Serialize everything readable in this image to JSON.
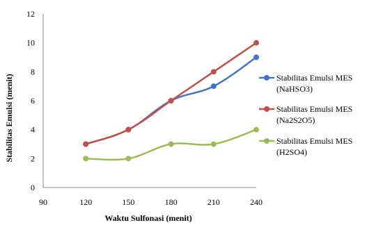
{
  "chart_data": {
    "type": "line",
    "title": "",
    "xlabel": "Waktu Sulfonasi (menit)",
    "ylabel": "Stabilitas Emulsi (menit)",
    "xlim": [
      90,
      240
    ],
    "ylim": [
      0,
      12
    ],
    "xticks": [
      "90",
      "120",
      "150",
      "180",
      "210",
      "240"
    ],
    "yticks": [
      "0",
      "2",
      "4",
      "6",
      "8",
      "10",
      "12"
    ],
    "x": [
      120,
      150,
      180,
      210,
      240
    ],
    "grid": false,
    "legend_position": "right",
    "series": [
      {
        "name": "Stabilitas Emulsi MES (NaHSO3)",
        "legend_lines": [
          "Stabilitas Emulsi MES",
          "(NaHSO3)"
        ],
        "color": "#4472C4",
        "values": [
          3,
          4,
          6,
          7,
          9
        ]
      },
      {
        "name": "Stabilitas Emulsi MES (Na2S2O5)",
        "legend_lines": [
          "Stabilitas Emulsi MES",
          "(Na2S2O5)"
        ],
        "color": "#C0504D",
        "values": [
          3,
          4,
          6,
          8,
          10
        ]
      },
      {
        "name": "Stabilitas Emulsi MES (H2SO4)",
        "legend_lines": [
          "Stabilitas Emulsi MES",
          "(H2SO4)"
        ],
        "color": "#9BBB59",
        "values": [
          2,
          2,
          3,
          3,
          4
        ]
      }
    ]
  }
}
